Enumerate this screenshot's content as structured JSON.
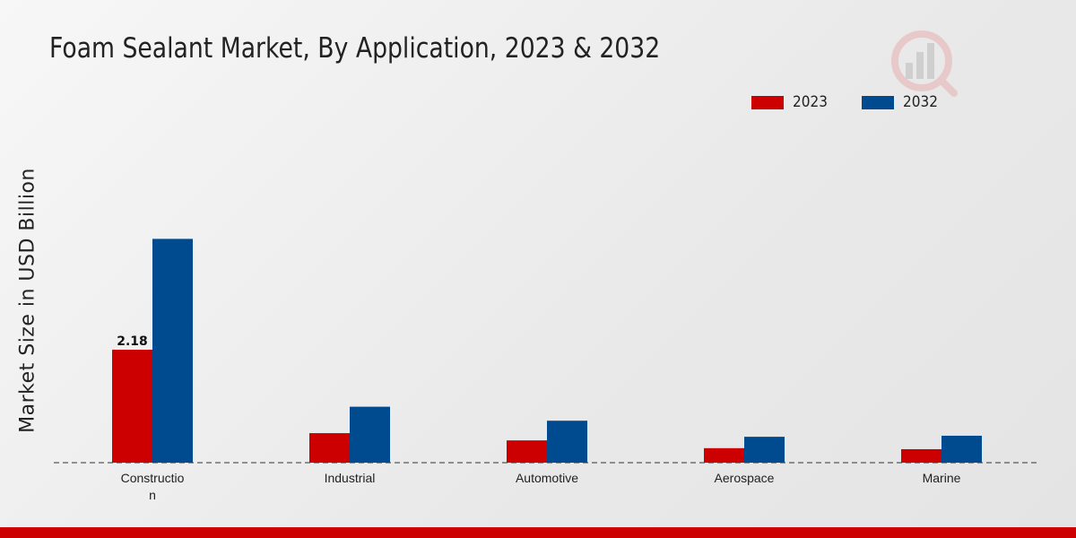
{
  "chart_data": {
    "type": "bar",
    "title": "Foam Sealant Market, By Application, 2023 & 2032",
    "xlabel": "",
    "ylabel": "Market Size in USD Billion",
    "categories": [
      "Constructio\nn",
      "Industrial",
      "Automotive",
      "Aerospace",
      "Marine"
    ],
    "series": [
      {
        "name": "2023",
        "color": "#cc0000",
        "values": [
          2.18,
          0.57,
          0.43,
          0.28,
          0.26
        ]
      },
      {
        "name": "2032",
        "color": "#004a8f",
        "values": [
          4.32,
          1.08,
          0.81,
          0.5,
          0.52
        ]
      }
    ],
    "data_labels": [
      {
        "series": 0,
        "category": 0,
        "text": "2.18"
      }
    ],
    "ylim": [
      0,
      7.2
    ],
    "grid": false,
    "legend": "top-right"
  },
  "logo": {
    "icon": "analytics-logo-icon"
  }
}
